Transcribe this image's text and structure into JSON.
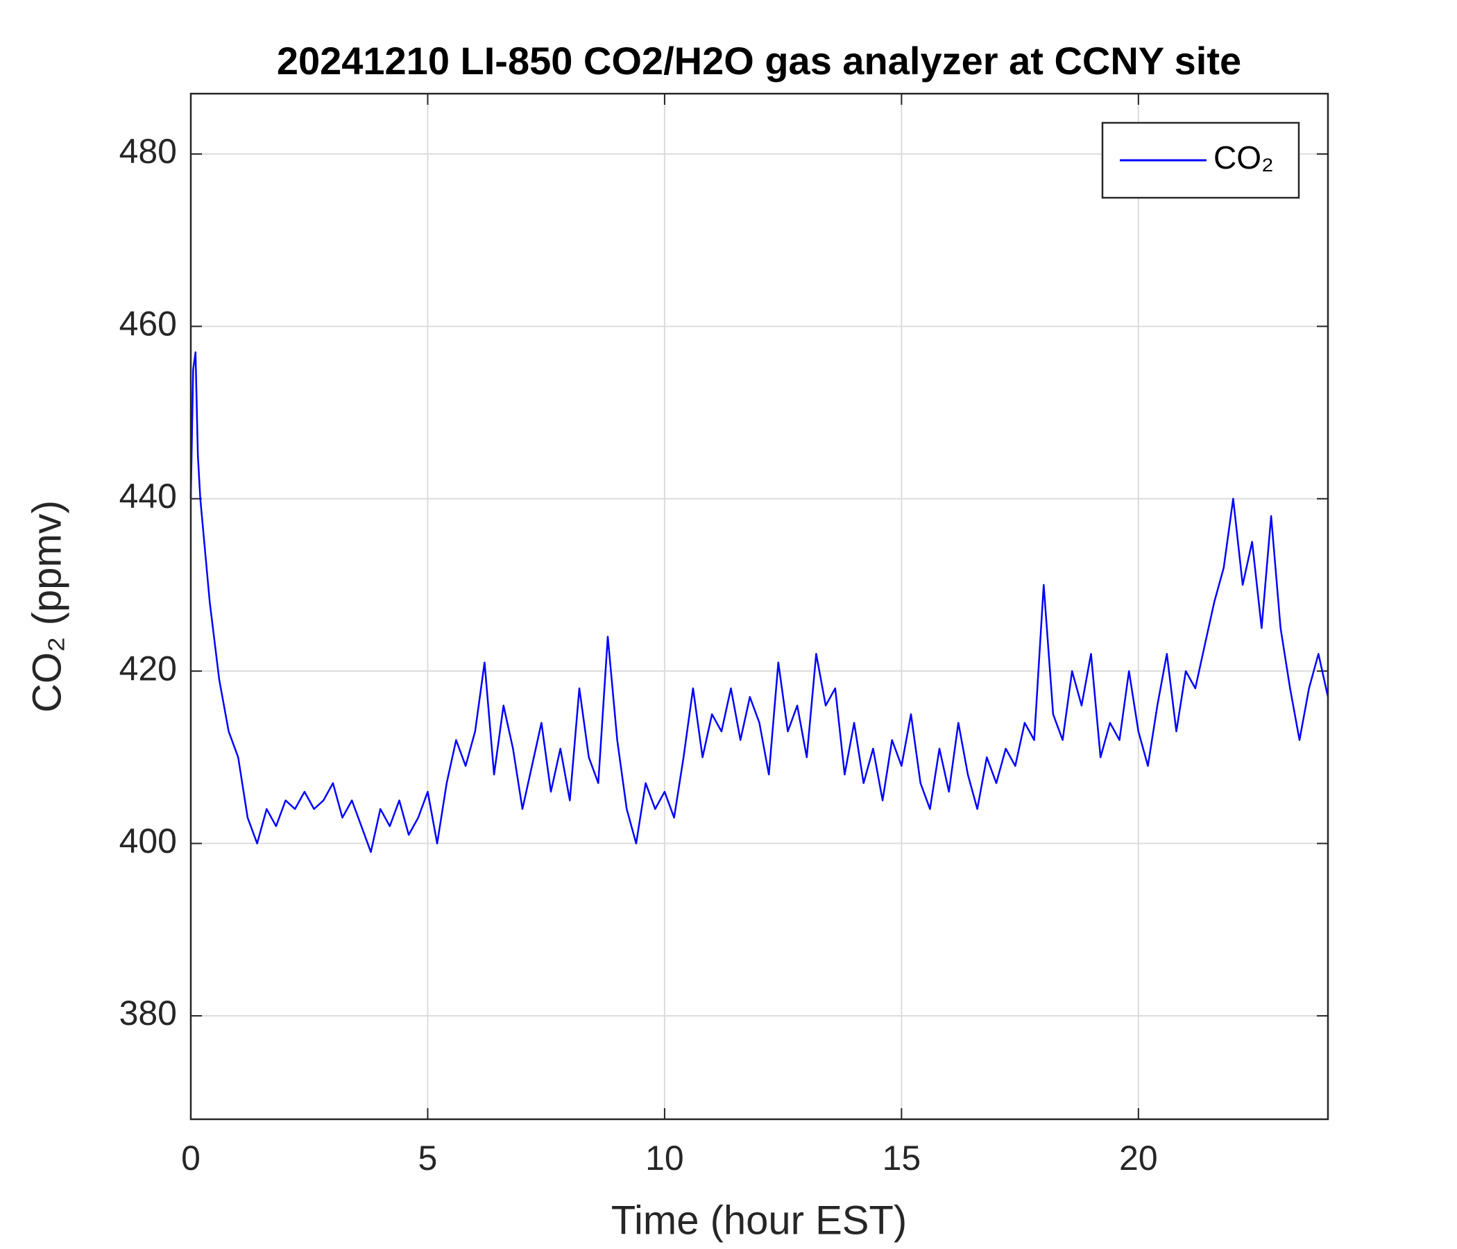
{
  "chart_data": {
    "type": "line",
    "title": "20241210 LI-850 CO2/H2O gas analyzer at CCNY site",
    "xlabel": "Time (hour EST)",
    "ylabel": "CO₂ (ppmv)",
    "xlim": [
      0,
      24
    ],
    "xticks": [
      0,
      5,
      10,
      15,
      20
    ],
    "ylim": [
      368,
      487
    ],
    "yticks": [
      380,
      400,
      420,
      440,
      460,
      480
    ],
    "grid": true,
    "legend": "upper right",
    "x": [
      0,
      0.05,
      0.1,
      0.15,
      0.2,
      0.4,
      0.6,
      0.8,
      1.0,
      1.2,
      1.4,
      1.6,
      1.8,
      2.0,
      2.2,
      2.4,
      2.6,
      2.8,
      3.0,
      3.2,
      3.4,
      3.6,
      3.8,
      4.0,
      4.2,
      4.4,
      4.6,
      4.8,
      5.0,
      5.2,
      5.4,
      5.6,
      5.8,
      6.0,
      6.2,
      6.4,
      6.6,
      6.8,
      7.0,
      7.2,
      7.4,
      7.6,
      7.8,
      8.0,
      8.2,
      8.4,
      8.6,
      8.8,
      9.0,
      9.2,
      9.4,
      9.6,
      9.8,
      10.0,
      10.2,
      10.4,
      10.6,
      10.8,
      11.0,
      11.2,
      11.4,
      11.6,
      11.8,
      12.0,
      12.2,
      12.4,
      12.6,
      12.8,
      13.0,
      13.2,
      13.4,
      13.6,
      13.8,
      14.0,
      14.2,
      14.4,
      14.6,
      14.8,
      15.0,
      15.2,
      15.4,
      15.6,
      15.8,
      16.0,
      16.2,
      16.4,
      16.6,
      16.8,
      17.0,
      17.2,
      17.4,
      17.6,
      17.8,
      18.0,
      18.2,
      18.4,
      18.6,
      18.8,
      19.0,
      19.2,
      19.4,
      19.6,
      19.8,
      20.0,
      20.2,
      20.4,
      20.6,
      20.8,
      21.0,
      21.2,
      21.4,
      21.6,
      21.8,
      22.0,
      22.2,
      22.4,
      22.6,
      22.8,
      23.0,
      23.2,
      23.4,
      23.6,
      23.8,
      24.0
    ],
    "series": [
      {
        "name": "CO₂",
        "color": "#0000ff",
        "values": [
          440,
          455,
          457,
          445,
          440,
          428,
          419,
          413,
          410,
          403,
          400,
          404,
          402,
          405,
          404,
          406,
          404,
          405,
          407,
          403,
          405,
          402,
          399,
          404,
          402,
          405,
          401,
          403,
          406,
          400,
          407,
          412,
          409,
          413,
          421,
          408,
          416,
          411,
          404,
          409,
          414,
          406,
          411,
          405,
          418,
          410,
          407,
          424,
          412,
          404,
          400,
          407,
          404,
          406,
          403,
          410,
          418,
          410,
          415,
          413,
          418,
          412,
          417,
          414,
          408,
          421,
          413,
          416,
          410,
          422,
          416,
          418,
          408,
          414,
          407,
          411,
          405,
          412,
          409,
          415,
          407,
          404,
          411,
          406,
          414,
          408,
          404,
          410,
          407,
          411,
          409,
          414,
          412,
          430,
          415,
          412,
          420,
          416,
          422,
          410,
          414,
          412,
          420,
          413,
          409,
          416,
          422,
          413,
          420,
          418,
          423,
          428,
          432,
          440,
          430,
          435,
          425,
          438,
          425,
          418,
          412,
          418,
          422,
          417
        ]
      }
    ]
  }
}
